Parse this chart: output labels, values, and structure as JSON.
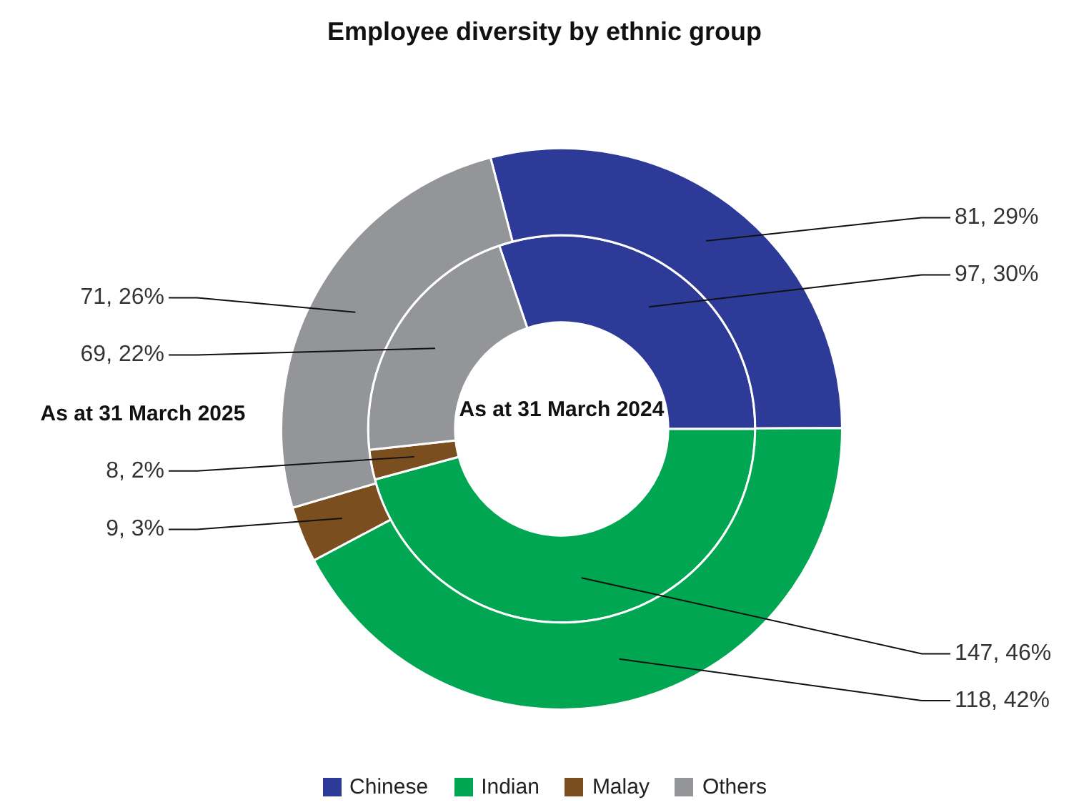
{
  "chart_data": {
    "type": "donut",
    "title": "Employee diversity by ethnic group",
    "categories": [
      "Chinese",
      "Indian",
      "Malay",
      "Others"
    ],
    "colors": [
      "#2e3a97",
      "#00a651",
      "#7a4e1f",
      "#939598"
    ],
    "series": [
      {
        "name": "As at 31 March 2025",
        "values": [
          81,
          118,
          9,
          71
        ],
        "value_labels": [
          "81, 29%",
          "118, 42%",
          "9, 3%",
          "71, 26%"
        ]
      },
      {
        "name": "As at 31 March 2024",
        "values": [
          97,
          147,
          8,
          69
        ],
        "value_labels": [
          "97, 30%",
          "147, 46%",
          "8, 2%",
          "69, 22%"
        ]
      }
    ],
    "legend": "bottom"
  }
}
